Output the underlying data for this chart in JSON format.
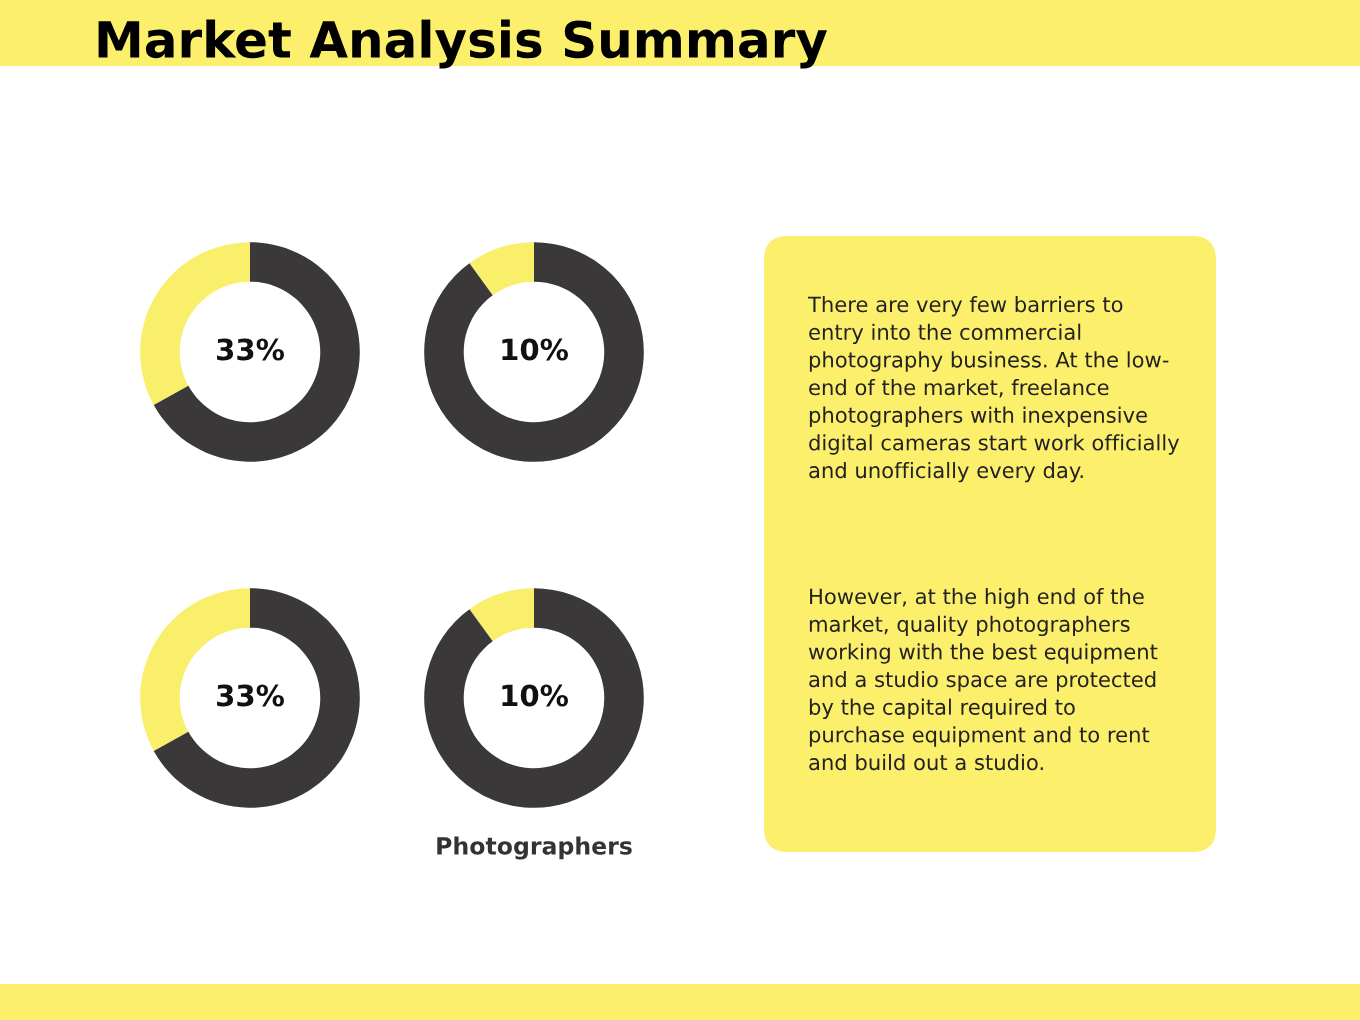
{
  "chart_data": [
    {
      "type": "donut",
      "categories": [
        null,
        null
      ],
      "values": [
        33,
        67
      ],
      "colors": [
        "#f9ef6a",
        "#3a3838"
      ],
      "annotations": [
        "33%"
      ]
    },
    {
      "type": "donut",
      "categories": [
        null,
        null
      ],
      "values": [
        10,
        90
      ],
      "colors": [
        "#f9ef6a",
        "#3a3838"
      ],
      "annotations": [
        "10%"
      ]
    },
    {
      "type": "donut",
      "categories": [
        null,
        null
      ],
      "values": [
        33,
        67
      ],
      "colors": [
        "#f9ef6a",
        "#3a3838"
      ],
      "annotations": [
        "33%"
      ]
    },
    {
      "type": "donut",
      "title": "Photographers",
      "categories": [
        null,
        null
      ],
      "values": [
        10,
        90
      ],
      "colors": [
        "#f9ef6a",
        "#3a3838"
      ],
      "annotations": [
        "10%"
      ]
    },
    {
      "type": "other",
      "title": "Market Analysis Summary",
      "annotations": [
        "There are very few barriers to\nentry into the commercial\nphotography business. At the low-\nend of the market, freelance\nphotographers with inexpensive\ndigital cameras start work officially\nand unofficially every day.",
        "However, at the high end of the\nmarket, quality photographers\nworking with the best equipment\nand a studio space are protected\nby the capital required to\npurchase equipment and to rent\nand build out a studio."
      ]
    }
  ]
}
